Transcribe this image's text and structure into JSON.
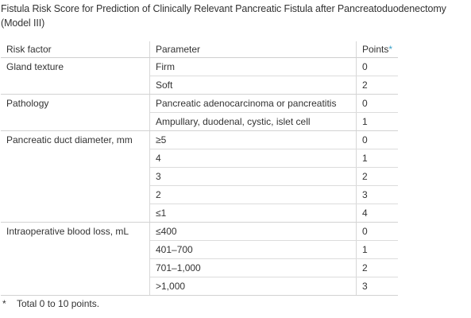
{
  "caption": "Fistula Risk Score for Prediction of Clinically Relevant Pancreatic Fistula after Pancreatoduodenectomy (Model III)",
  "headers": {
    "risk_factor": "Risk factor",
    "parameter": "Parameter",
    "points": "Points",
    "points_mark": "*"
  },
  "groups": [
    {
      "factor": "Gland texture",
      "rows": [
        {
          "parameter": "Firm",
          "points": "0"
        },
        {
          "parameter": "Soft",
          "points": "2"
        }
      ]
    },
    {
      "factor": "Pathology",
      "rows": [
        {
          "parameter": "Pancreatic adenocarcinoma or pancreatitis",
          "points": "0"
        },
        {
          "parameter": "Ampullary, duodenal, cystic, islet cell",
          "points": "1"
        }
      ]
    },
    {
      "factor": "Pancreatic duct diameter, mm",
      "rows": [
        {
          "parameter": "≥5",
          "points": "0"
        },
        {
          "parameter": "4",
          "points": "1"
        },
        {
          "parameter": "3",
          "points": "2"
        },
        {
          "parameter": "2",
          "points": "3"
        },
        {
          "parameter": "≤1",
          "points": "4"
        }
      ]
    },
    {
      "factor": "Intraoperative blood loss, mL",
      "rows": [
        {
          "parameter": "≤400",
          "points": "0"
        },
        {
          "parameter": "401–700",
          "points": "1"
        },
        {
          "parameter": "701–1,000",
          "points": "2"
        },
        {
          "parameter": ">1,000",
          "points": "3"
        }
      ]
    }
  ],
  "footnote": {
    "mark": "*",
    "text": "Total 0 to 10 points."
  }
}
